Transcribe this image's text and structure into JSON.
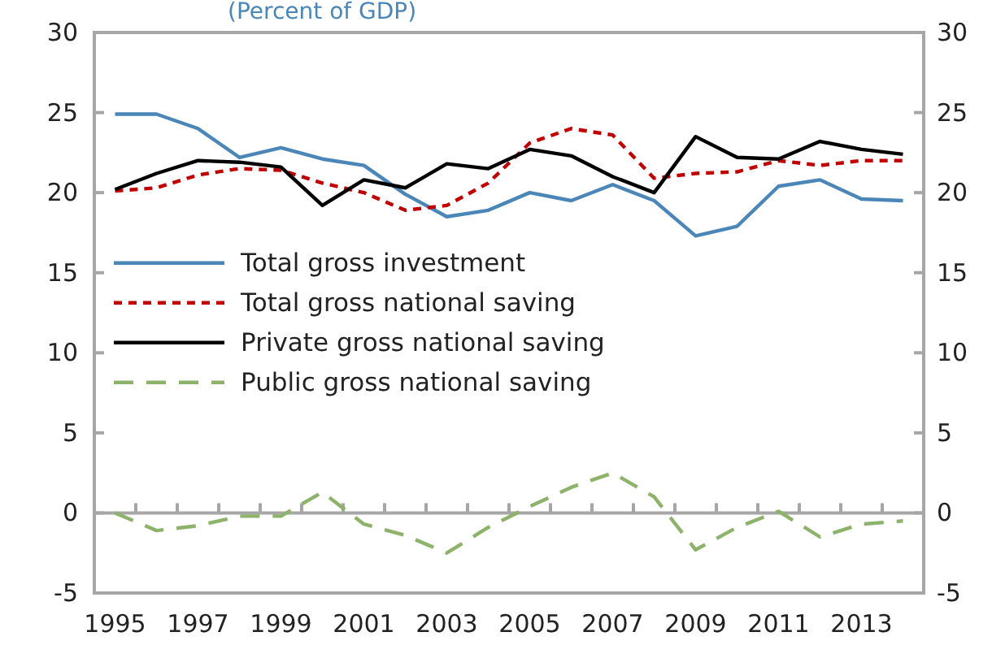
{
  "chart_data": {
    "type": "line",
    "subtitle": "(Percent of GDP)",
    "categories": [
      "1995",
      null,
      "1997",
      null,
      "1999",
      null,
      "2001",
      null,
      "2003",
      null,
      "2005",
      null,
      "2007",
      null,
      "2009",
      null,
      "2011",
      null,
      "2013",
      null
    ],
    "series": [
      {
        "name": "Total gross investment",
        "color": "#4a86b8",
        "line_style": "solid",
        "values": [
          24.9,
          24.9,
          24.0,
          22.2,
          22.8,
          22.1,
          21.7,
          19.9,
          18.5,
          18.9,
          20.0,
          19.5,
          20.5,
          19.5,
          17.3,
          17.9,
          20.4,
          20.8,
          19.6,
          19.5
        ]
      },
      {
        "name": "Total gross national saving",
        "color": "#c00000",
        "line_style": "dotted",
        "values": [
          20.1,
          20.3,
          21.1,
          21.5,
          21.4,
          20.6,
          20.0,
          18.9,
          19.2,
          20.6,
          23.1,
          24.0,
          23.6,
          20.9,
          21.2,
          21.3,
          22.0,
          21.7,
          22.0,
          22.0
        ]
      },
      {
        "name": "Private gross national saving",
        "color": "#000000",
        "line_style": "solid",
        "values": [
          20.2,
          21.2,
          22.0,
          21.9,
          21.6,
          19.2,
          20.8,
          20.3,
          21.8,
          21.5,
          22.7,
          22.3,
          21.0,
          20.0,
          23.5,
          22.2,
          22.1,
          23.2,
          22.7,
          22.4
        ]
      },
      {
        "name": "Public gross national saving",
        "color": "#8db36a",
        "line_style": "dashed",
        "values": [
          0,
          -1.1,
          -0.8,
          -0.2,
          -0.2,
          1.3,
          -0.7,
          -1.4,
          -2.5,
          -0.9,
          0.4,
          1.6,
          2.5,
          1.0,
          -2.3,
          -0.9,
          0.1,
          -1.5,
          -0.7,
          -0.5
        ]
      }
    ],
    "ylim": [
      -5,
      30
    ],
    "yticks": [
      -5,
      0,
      5,
      10,
      15,
      20,
      25,
      30
    ],
    "y2lim": [
      -5,
      30
    ],
    "y2ticks": [
      -5,
      0,
      5,
      10,
      15,
      20,
      25,
      30
    ],
    "ref_lines": [
      {
        "axis": "y",
        "value": 0,
        "color": "#a6a6a6"
      }
    ],
    "legend": "center left"
  }
}
